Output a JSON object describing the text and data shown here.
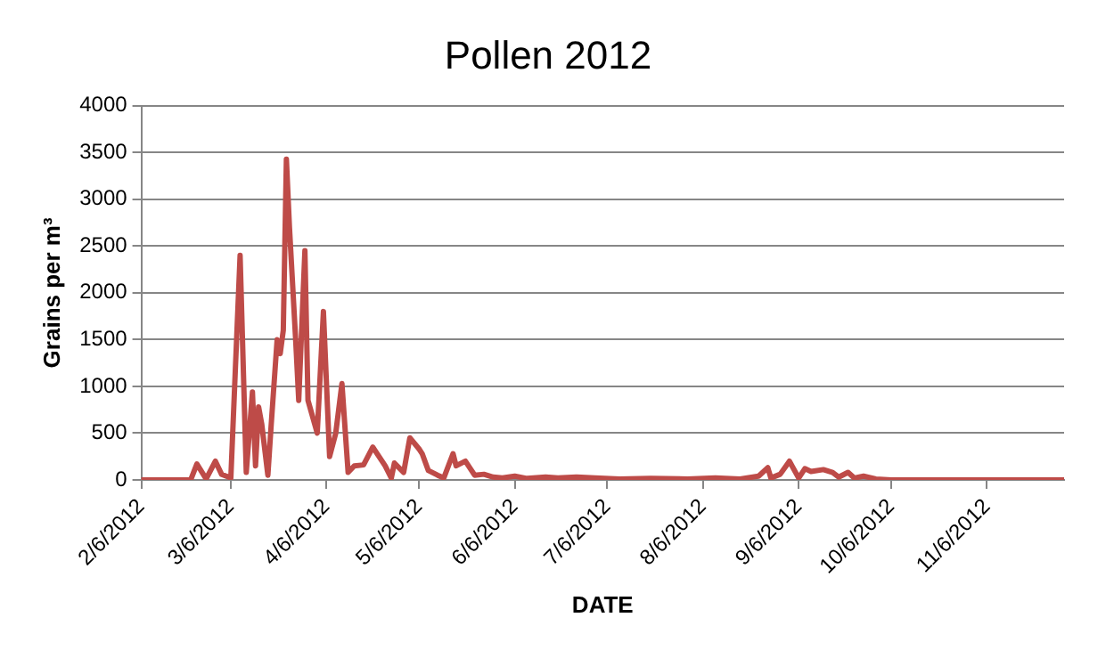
{
  "chart_data": {
    "type": "line",
    "title": "Pollen 2012",
    "xlabel": "DATE",
    "ylabel": "Grains per m³",
    "x": [
      "2012-02-06",
      "2012-02-22",
      "2012-02-24",
      "2012-02-27",
      "2012-03-01",
      "2012-03-03",
      "2012-03-06",
      "2012-03-09",
      "2012-03-11",
      "2012-03-13",
      "2012-03-14",
      "2012-03-15",
      "2012-03-16",
      "2012-03-18",
      "2012-03-19",
      "2012-03-21",
      "2012-03-22",
      "2012-03-23",
      "2012-03-24",
      "2012-03-25",
      "2012-03-27",
      "2012-03-28",
      "2012-03-30",
      "2012-03-31",
      "2012-04-03",
      "2012-04-05",
      "2012-04-07",
      "2012-04-09",
      "2012-04-11",
      "2012-04-13",
      "2012-04-15",
      "2012-04-18",
      "2012-04-21",
      "2012-04-24",
      "2012-04-25",
      "2012-04-27",
      "2012-04-28",
      "2012-05-01",
      "2012-05-03",
      "2012-05-06",
      "2012-05-07",
      "2012-05-09",
      "2012-05-12",
      "2012-05-14",
      "2012-05-17",
      "2012-05-18",
      "2012-05-21",
      "2012-05-24",
      "2012-05-27",
      "2012-05-30",
      "2012-06-02",
      "2012-06-06",
      "2012-06-10",
      "2012-06-16",
      "2012-06-20",
      "2012-06-26",
      "2012-07-02",
      "2012-07-10",
      "2012-07-20",
      "2012-08-01",
      "2012-08-10",
      "2012-08-18",
      "2012-08-24",
      "2012-08-27",
      "2012-08-28",
      "2012-08-31",
      "2012-09-03",
      "2012-09-06",
      "2012-09-08",
      "2012-09-10",
      "2012-09-14",
      "2012-09-17",
      "2012-09-19",
      "2012-09-22",
      "2012-09-24",
      "2012-09-27",
      "2012-10-01",
      "2012-10-06",
      "2012-12-01"
    ],
    "series": [
      {
        "color": "#be4b48",
        "values": [
          0,
          0,
          170,
          10,
          200,
          60,
          20,
          2400,
          80,
          940,
          150,
          780,
          600,
          50,
          550,
          1500,
          1350,
          1600,
          3430,
          2700,
          1500,
          850,
          2450,
          850,
          500,
          1800,
          250,
          500,
          1030,
          80,
          150,
          160,
          350,
          200,
          150,
          20,
          180,
          80,
          450,
          330,
          280,
          100,
          50,
          20,
          280,
          150,
          200,
          50,
          60,
          30,
          20,
          40,
          15,
          30,
          20,
          30,
          20,
          10,
          15,
          10,
          20,
          10,
          40,
          130,
          20,
          60,
          200,
          20,
          120,
          90,
          110,
          80,
          30,
          80,
          20,
          40,
          10,
          0,
          0
        ]
      }
    ],
    "xlim": [
      "2012-02-06",
      "2012-12-01"
    ],
    "xticks": [
      {
        "value": "2012-02-06",
        "label": "2/6/2012"
      },
      {
        "value": "2012-03-06",
        "label": "3/6/2012"
      },
      {
        "value": "2012-04-06",
        "label": "4/6/2012"
      },
      {
        "value": "2012-05-06",
        "label": "5/6/2012"
      },
      {
        "value": "2012-06-06",
        "label": "6/6/2012"
      },
      {
        "value": "2012-07-06",
        "label": "7/6/2012"
      },
      {
        "value": "2012-08-06",
        "label": "8/6/2012"
      },
      {
        "value": "2012-09-06",
        "label": "9/6/2012"
      },
      {
        "value": "2012-10-06",
        "label": "10/6/2012"
      },
      {
        "value": "2012-11-06",
        "label": "11/6/2012"
      }
    ],
    "ylim": [
      0,
      4000
    ],
    "yticks": [
      0,
      500,
      1000,
      1500,
      2000,
      2500,
      3000,
      3500,
      4000
    ],
    "grid": "y",
    "legend": false,
    "marker": "none",
    "line_style": "solid"
  }
}
